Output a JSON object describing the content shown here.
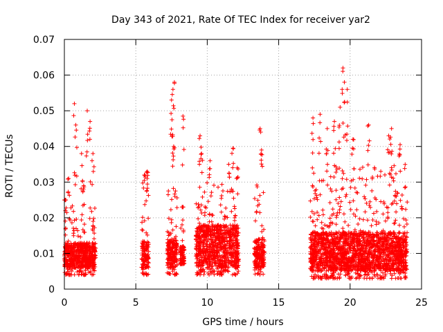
{
  "chart_data": {
    "type": "scatter",
    "title": "Day 343 of 2021, Rate Of TEC Index for receiver yar2",
    "xlabel": "GPS time / hours",
    "ylabel": "ROTI / TECUs",
    "xlim": [
      0,
      25
    ],
    "ylim": [
      0,
      0.07
    ],
    "xticks": [
      "0",
      "5",
      "10",
      "15",
      "20",
      "25"
    ],
    "yticks": [
      "0",
      "0.01",
      "0.02",
      "0.03",
      "0.04",
      "0.05",
      "0.06",
      "0.07"
    ],
    "grid": true,
    "marker": "+",
    "color": "#ff0000",
    "clusters": [
      {
        "x": [
          0.0,
          2.2
        ],
        "core": [
          0.006,
          0.013
        ],
        "spread": [
          0.004,
          0.025
        ],
        "peaks": [
          [
            0.05,
            0.025
          ],
          [
            0.3,
            0.031
          ],
          [
            0.7,
            0.052
          ],
          [
            0.8,
            0.046
          ],
          [
            1.2,
            0.038
          ],
          [
            1.35,
            0.029
          ],
          [
            1.6,
            0.05
          ],
          [
            1.8,
            0.047
          ],
          [
            2.0,
            0.038
          ]
        ]
      },
      {
        "x": [
          5.4,
          5.9
        ],
        "core": [
          0.006,
          0.014
        ],
        "spread": [
          0.004,
          0.03
        ],
        "peaks": [
          [
            5.6,
            0.032
          ],
          [
            5.8,
            0.033
          ]
        ]
      },
      {
        "x": [
          7.2,
          7.9
        ],
        "core": [
          0.006,
          0.014
        ],
        "spread": [
          0.004,
          0.035
        ],
        "peaks": [
          [
            7.5,
            0.053
          ],
          [
            7.6,
            0.056
          ],
          [
            7.7,
            0.058
          ],
          [
            7.65,
            0.04
          ]
        ]
      },
      {
        "x": [
          8.1,
          8.4
        ],
        "core": [
          0.007,
          0.012
        ],
        "spread": [
          0.007,
          0.023
        ],
        "peaks": [
          [
            8.3,
            0.0485
          ],
          [
            8.25,
            0.023
          ]
        ]
      },
      {
        "x": [
          9.2,
          12.2
        ],
        "core": [
          0.006,
          0.018
        ],
        "spread": [
          0.004,
          0.03
        ],
        "peaks": [
          [
            9.5,
            0.043
          ],
          [
            9.6,
            0.038
          ],
          [
            10.2,
            0.036
          ],
          [
            11.5,
            0.035
          ],
          [
            11.8,
            0.0395
          ],
          [
            12.1,
            0.034
          ]
        ]
      },
      {
        "x": [
          13.3,
          14.0
        ],
        "core": [
          0.006,
          0.014
        ],
        "spread": [
          0.004,
          0.03
        ],
        "peaks": [
          [
            13.7,
            0.045
          ],
          [
            13.8,
            0.039
          ]
        ]
      },
      {
        "x": [
          17.2,
          24.0
        ],
        "core": [
          0.005,
          0.016
        ],
        "spread": [
          0.003,
          0.035
        ],
        "peaks": [
          [
            17.4,
            0.048
          ],
          [
            17.9,
            0.049
          ],
          [
            18.4,
            0.045
          ],
          [
            18.9,
            0.047
          ],
          [
            19.5,
            0.062
          ],
          [
            19.6,
            0.058
          ],
          [
            19.8,
            0.056
          ],
          [
            19.3,
            0.051
          ],
          [
            20.2,
            0.042
          ],
          [
            21.3,
            0.046
          ],
          [
            22.7,
            0.043
          ],
          [
            22.9,
            0.045
          ],
          [
            23.5,
            0.0405
          ]
        ]
      }
    ]
  }
}
